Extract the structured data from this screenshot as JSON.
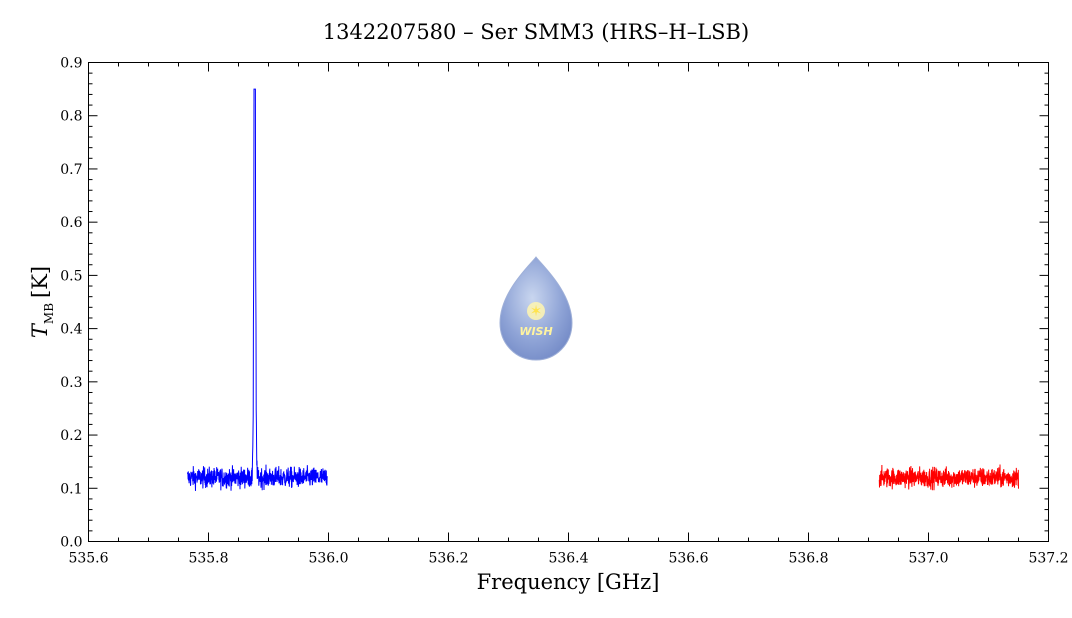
{
  "chart_data": {
    "type": "line",
    "title": "1342207580 – Ser SMM3 (HRS–H–LSB)",
    "xlabel": "Frequency [GHz]",
    "ylabel_symbol": "T",
    "ylabel_subscript": "MB",
    "ylabel_unit": "[K]",
    "xlim": [
      535.6,
      537.2
    ],
    "ylim": [
      0.0,
      0.9
    ],
    "x_major_ticks": [
      535.6,
      535.8,
      536.0,
      536.2,
      536.4,
      536.6,
      536.8,
      537.0,
      537.2
    ],
    "x_tick_labels": [
      "535.6",
      "535.8",
      "536.0",
      "536.2",
      "536.4",
      "536.6",
      "536.8",
      "537.0",
      "537.2"
    ],
    "y_major_ticks": [
      0.0,
      0.1,
      0.2,
      0.3,
      0.4,
      0.5,
      0.6,
      0.7,
      0.8,
      0.9
    ],
    "y_tick_labels": [
      "0.0",
      "0.1",
      "0.2",
      "0.3",
      "0.4",
      "0.5",
      "0.6",
      "0.7",
      "0.8",
      "0.9"
    ],
    "grid": false,
    "logo_text": "WISH",
    "series": [
      {
        "color": "#0000ff",
        "x_range": [
          535.765,
          535.998
        ],
        "baseline": 0.12,
        "noise_amplitude": 0.035,
        "line": {
          "center": 535.877,
          "peak": 0.85,
          "shoulder": 0.4
        }
      },
      {
        "color": "#ff0000",
        "x_range": [
          536.918,
          537.15
        ],
        "baseline": 0.12,
        "noise_amplitude": 0.035
      }
    ]
  }
}
